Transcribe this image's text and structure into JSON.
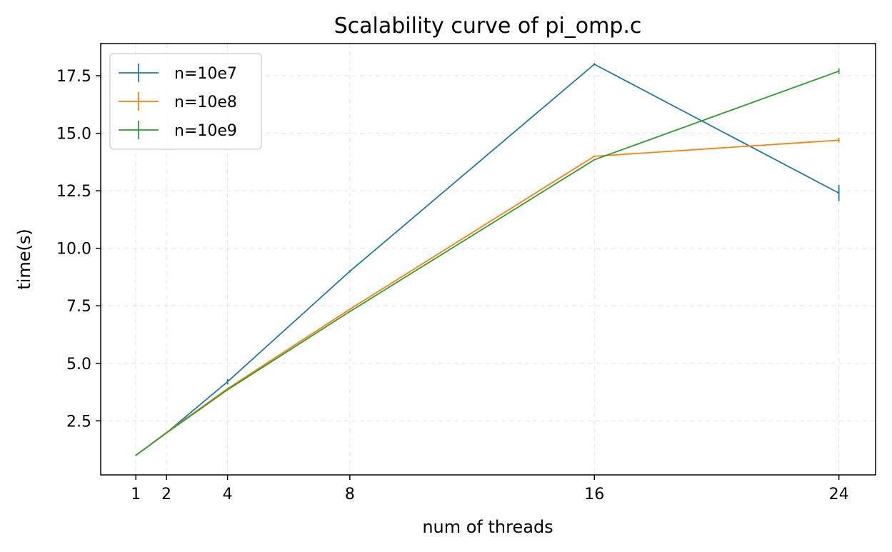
{
  "chart_data": {
    "type": "line",
    "title": "Scalability curve of pi_omp.c",
    "xlabel": "num of threads",
    "ylabel": "time(s)",
    "xlim": [
      -0.15,
      25.2
    ],
    "ylim": [
      0.15,
      18.9
    ],
    "x_ticks": [
      1,
      2,
      4,
      8,
      16,
      24
    ],
    "y_ticks": [
      2.5,
      5.0,
      7.5,
      10.0,
      12.5,
      15.0,
      17.5
    ],
    "y_tick_labels": [
      "2.5",
      "5.0",
      "7.5",
      "10.0",
      "12.5",
      "15.0",
      "17.5"
    ],
    "grid": true,
    "legend_position": "top-left",
    "x": [
      1,
      2,
      4,
      8,
      16,
      24
    ],
    "series": [
      {
        "name": "n=10e7",
        "color": "#1f77b4",
        "values": [
          1.0,
          1.98,
          4.2,
          9.0,
          18.0,
          12.4
        ],
        "errors": [
          0.02,
          0.02,
          0.12,
          0.05,
          0.05,
          0.35
        ]
      },
      {
        "name": "n=10e8",
        "color": "#ff7f0e",
        "values": [
          1.0,
          1.99,
          3.9,
          7.35,
          14.0,
          14.7
        ],
        "errors": [
          0.01,
          0.01,
          0.02,
          0.02,
          0.03,
          0.1
        ]
      },
      {
        "name": "n=10e9",
        "color": "#2ca02c",
        "values": [
          1.0,
          1.97,
          3.85,
          7.25,
          13.85,
          17.7
        ],
        "errors": [
          0.01,
          0.01,
          0.02,
          0.02,
          0.03,
          0.12
        ]
      }
    ]
  }
}
